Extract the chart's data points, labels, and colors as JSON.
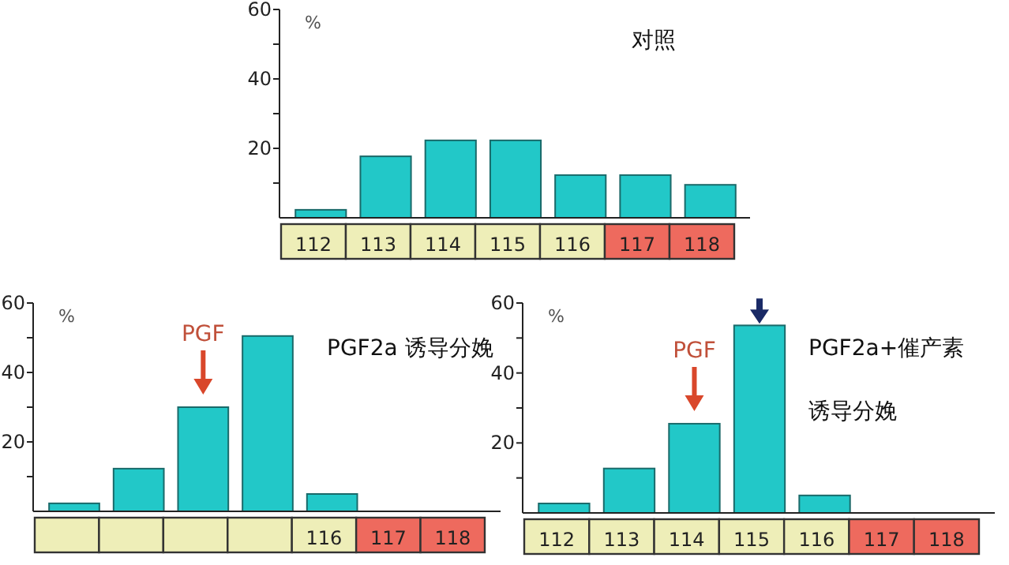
{
  "chart_data": [
    {
      "type": "bar",
      "title": "对照",
      "ylabel": "%",
      "categories": [
        "112",
        "113",
        "114",
        "115",
        "116",
        "117",
        "118"
      ],
      "values": [
        2.3,
        17.7,
        22.3,
        22.3,
        12.3,
        12.3,
        9.5
      ],
      "color": "#22c8c8",
      "ylim": [
        0,
        60
      ],
      "yticks": [
        {
          "value": 10,
          "label": null
        },
        20,
        {
          "value": 30,
          "label": null
        },
        40,
        {
          "value": 50,
          "label": null
        },
        60
      ]
    },
    {
      "type": "bar",
      "title": "PGF2a 诱导分娩",
      "ylabel": "%",
      "categories": [
        null,
        null,
        null,
        null,
        "116",
        "117",
        "118"
      ],
      "values": [
        2.3,
        12.3,
        30,
        50.5,
        5,
        0,
        0
      ],
      "color": "#22c8c8",
      "ylim": [
        0,
        60
      ],
      "yticks": [
        {
          "value": 10,
          "label": null
        },
        20,
        {
          "value": 30,
          "label": null
        },
        40,
        {
          "value": 50,
          "label": null
        },
        60
      ],
      "annotations": [
        "PGF"
      ]
    },
    {
      "type": "bar",
      "title": "PGF2a+催产素",
      "subtitle": "诱导分娩",
      "ylabel": "%",
      "categories": [
        "112",
        "113",
        "114",
        "115",
        "116",
        "117",
        "118"
      ],
      "values": [
        2.7,
        12.7,
        25.5,
        53.6,
        5,
        0,
        0
      ],
      "color": "#22c8c8",
      "ylim": [
        0,
        60
      ],
      "yticks": [
        {
          "value": 10,
          "label": null
        },
        20,
        {
          "value": 30,
          "label": null
        },
        40,
        {
          "value": 50,
          "label": null
        },
        60
      ],
      "annotations": [
        "PGF"
      ]
    }
  ]
}
